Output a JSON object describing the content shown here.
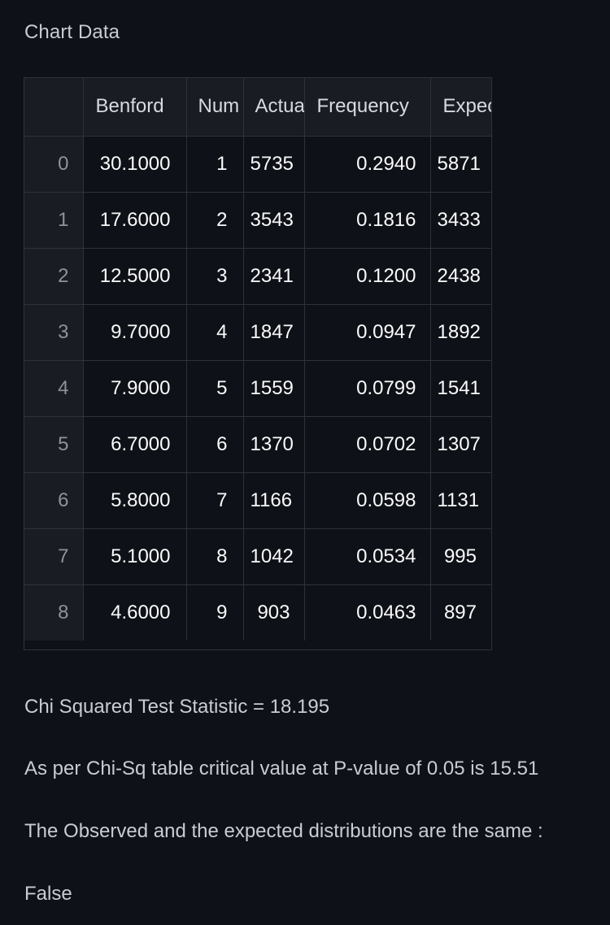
{
  "section_label": "Chart Data",
  "table": {
    "headers": {
      "index": "",
      "benford": "Benford",
      "num": "Num",
      "actual": "Actual",
      "frequency": "Frequency",
      "expected": "Expected"
    },
    "rows": [
      {
        "index": "0",
        "benford": "30.1000",
        "num": "1",
        "actual": "5735",
        "frequency": "0.2940",
        "expected": "5871"
      },
      {
        "index": "1",
        "benford": "17.6000",
        "num": "2",
        "actual": "3543",
        "frequency": "0.1816",
        "expected": "3433"
      },
      {
        "index": "2",
        "benford": "12.5000",
        "num": "3",
        "actual": "2341",
        "frequency": "0.1200",
        "expected": "2438"
      },
      {
        "index": "3",
        "benford": "9.7000",
        "num": "4",
        "actual": "1847",
        "frequency": "0.0947",
        "expected": "1892"
      },
      {
        "index": "4",
        "benford": "7.9000",
        "num": "5",
        "actual": "1559",
        "frequency": "0.0799",
        "expected": "1541"
      },
      {
        "index": "5",
        "benford": "6.7000",
        "num": "6",
        "actual": "1370",
        "frequency": "0.0702",
        "expected": "1307"
      },
      {
        "index": "6",
        "benford": "5.8000",
        "num": "7",
        "actual": "1166",
        "frequency": "0.0598",
        "expected": "1131"
      },
      {
        "index": "7",
        "benford": "5.1000",
        "num": "8",
        "actual": "1042",
        "frequency": "0.0534",
        "expected": "995"
      },
      {
        "index": "8",
        "benford": "4.6000",
        "num": "9",
        "actual": "903",
        "frequency": "0.0463",
        "expected": "897"
      }
    ]
  },
  "results": {
    "chi_squared": "Chi Squared Test Statistic = 18.195",
    "critical_value": "As per Chi-Sq table critical value at P-value of 0.05 is 15.51",
    "same_distribution_label": "The Observed and the expected distributions are the same :",
    "same_distribution_value": "False"
  },
  "colors": {
    "background": "#0e1117",
    "header_background": "#1a1c24",
    "grid_line": "#2f323b",
    "text": "#fafafa",
    "muted_text": "#c9ccd3"
  }
}
